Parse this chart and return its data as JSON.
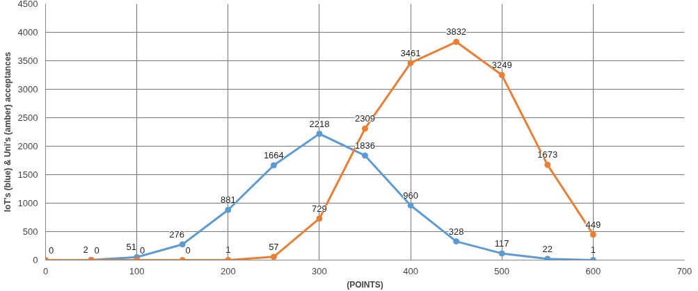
{
  "chart_data": {
    "type": "line",
    "xlabel": "(POINTS)",
    "ylabel": "IoT's (blue) & Uni's (amber) acceptances",
    "x": [
      0,
      50,
      100,
      150,
      200,
      250,
      300,
      350,
      400,
      450,
      500,
      550,
      600
    ],
    "series": [
      {
        "color": "#5b9bd5",
        "values": [
          null,
          2,
          51,
          276,
          881,
          1664,
          2218,
          1836,
          960,
          328,
          117,
          22,
          1
        ]
      },
      {
        "color": "#ed7d31",
        "values": [
          0,
          0,
          0,
          0,
          1,
          57,
          729,
          2309,
          3461,
          3832,
          3249,
          1673,
          449
        ]
      }
    ],
    "xlim": [
      0,
      700
    ],
    "xticks": [
      0,
      100,
      200,
      300,
      400,
      500,
      600,
      700
    ],
    "ylim": [
      0,
      4500
    ],
    "yticks": [
      0,
      500,
      1000,
      1500,
      2000,
      2500,
      3000,
      3500,
      4000,
      4500
    ],
    "grid": true,
    "marker": "circle",
    "line_style": "solid",
    "data_labels": true
  }
}
